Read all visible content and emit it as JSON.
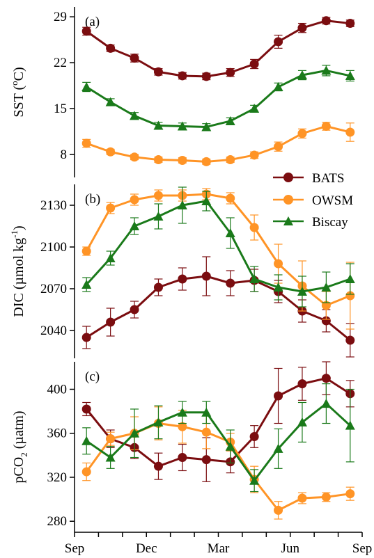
{
  "colors": {
    "BATS": "#7b0d10",
    "OWSM": "#ff9426",
    "Biscay": "#1a7a1a",
    "axis": "#000000"
  },
  "x_axis": {
    "ticks": [
      "Sep",
      "Dec",
      "Mar",
      "Jun",
      "Sep"
    ],
    "tick_positions": [
      0,
      3,
      6,
      9,
      12
    ]
  },
  "legend": {
    "placement": "right, panel b",
    "entries": [
      "BATS",
      "OWSM",
      "Biscay"
    ]
  },
  "panels": [
    {
      "label": "(a)",
      "ylabel": "SST (°C)",
      "ylabel_main": "SST (",
      "ylabel_sup": "o",
      "ylabel_tail": "C)"
    },
    {
      "label": "(b)",
      "ylabel": "DIC (µmol kg-1)",
      "ylabel_main": "DIC (µmol kg",
      "ylabel_sup": "-1",
      "ylabel_tail": ")"
    },
    {
      "label": "(c)",
      "ylabel": "pCO2 (µatm)",
      "ylabel_main": "pCO",
      "ylabel_sub": "2",
      "ylabel_tail": " (µatm)"
    }
  ],
  "chart_data": [
    {
      "type": "line",
      "title": "(a)",
      "ylabel": "SST (°C)",
      "x": [
        0.5,
        1.5,
        2.5,
        3.5,
        4.5,
        5.5,
        6.5,
        7.5,
        8.5,
        9.5,
        10.5,
        11.5
      ],
      "ylim": [
        4.5,
        30.5
      ],
      "yticks": [
        8,
        15,
        22,
        29
      ],
      "series": [
        {
          "name": "BATS",
          "marker": "circle",
          "values": [
            26.8,
            24.2,
            22.7,
            20.6,
            20.0,
            19.9,
            20.5,
            21.8,
            25.2,
            27.3,
            28.4,
            28.0
          ],
          "errors": [
            0.6,
            0.5,
            0.6,
            0.5,
            0.5,
            0.5,
            0.6,
            0.7,
            1.0,
            0.7,
            0.5,
            0.5
          ]
        },
        {
          "name": "OWSM",
          "marker": "circle",
          "values": [
            9.7,
            8.4,
            7.6,
            7.2,
            7.1,
            6.9,
            7.2,
            7.9,
            9.2,
            11.2,
            12.3,
            11.4
          ],
          "errors": [
            0.6,
            0.4,
            0.4,
            0.4,
            0.4,
            0.4,
            0.4,
            0.5,
            0.7,
            0.7,
            0.6,
            1.4
          ]
        },
        {
          "name": "Biscay",
          "marker": "triangle",
          "values": [
            18.3,
            16.0,
            13.9,
            12.4,
            12.3,
            12.2,
            13.1,
            15.0,
            18.3,
            20.1,
            20.8,
            20.0
          ],
          "errors": [
            0.7,
            0.5,
            0.5,
            0.5,
            0.5,
            0.5,
            0.5,
            0.5,
            0.6,
            0.7,
            0.8,
            0.8
          ]
        }
      ]
    },
    {
      "type": "line",
      "title": "(b)",
      "ylabel": "DIC (µmol kg-1)",
      "x": [
        0.5,
        1.5,
        2.5,
        3.5,
        4.5,
        5.5,
        6.5,
        7.5,
        8.5,
        9.5,
        10.5,
        11.5
      ],
      "ylim": [
        2020,
        2145
      ],
      "yticks": [
        2040,
        2070,
        2100,
        2130
      ],
      "series": [
        {
          "name": "BATS",
          "marker": "circle",
          "values": [
            2035,
            2046,
            2055,
            2071,
            2077,
            2079,
            2074,
            2076,
            2068,
            2054,
            2047,
            2033
          ],
          "errors": [
            8,
            10,
            6,
            6,
            8,
            14,
            9,
            8,
            8,
            8,
            8,
            12
          ]
        },
        {
          "name": "OWSM",
          "marker": "circle",
          "values": [
            2097,
            2128,
            2134,
            2137,
            2137,
            2138,
            2135,
            2114,
            2088,
            2072,
            2058,
            2065
          ],
          "errors": [
            3,
            4,
            4,
            4,
            4,
            4,
            4,
            9,
            14,
            18,
            10,
            24
          ]
        },
        {
          "name": "Biscay",
          "marker": "triangle",
          "values": [
            2073,
            2092,
            2115,
            2122,
            2130,
            2133,
            2110,
            2077,
            2071,
            2068,
            2071,
            2077
          ],
          "errors": [
            5,
            5,
            6,
            9,
            13,
            7,
            11,
            9,
            9,
            11,
            11,
            11
          ]
        }
      ]
    },
    {
      "type": "line",
      "title": "(c)",
      "ylabel": "pCO2 (µatm)",
      "x": [
        0.5,
        1.5,
        2.5,
        3.5,
        4.5,
        5.5,
        6.5,
        7.5,
        8.5,
        9.5,
        10.5,
        11.5
      ],
      "ylim": [
        270,
        425
      ],
      "yticks": [
        280,
        320,
        360,
        400
      ],
      "series": [
        {
          "name": "BATS",
          "marker": "circle",
          "values": [
            382,
            355,
            347,
            330,
            338,
            336,
            334,
            357,
            394,
            405,
            410,
            396
          ],
          "errors": [
            6,
            8,
            10,
            12,
            12,
            20,
            10,
            10,
            25,
            15,
            15,
            12
          ]
        },
        {
          "name": "OWSM",
          "marker": "circle",
          "values": [
            325,
            355,
            360,
            369,
            366,
            361,
            352,
            318,
            290,
            301,
            302,
            305
          ],
          "errors": [
            8,
            6,
            15,
            15,
            15,
            15,
            8,
            12,
            8,
            5,
            4,
            6
          ]
        },
        {
          "name": "Biscay",
          "marker": "triangle",
          "values": [
            353,
            338,
            360,
            370,
            379,
            379,
            348,
            317,
            346,
            370,
            387,
            367
          ],
          "errors": [
            12,
            10,
            22,
            15,
            10,
            10,
            15,
            10,
            18,
            18,
            18,
            33
          ]
        }
      ]
    }
  ]
}
